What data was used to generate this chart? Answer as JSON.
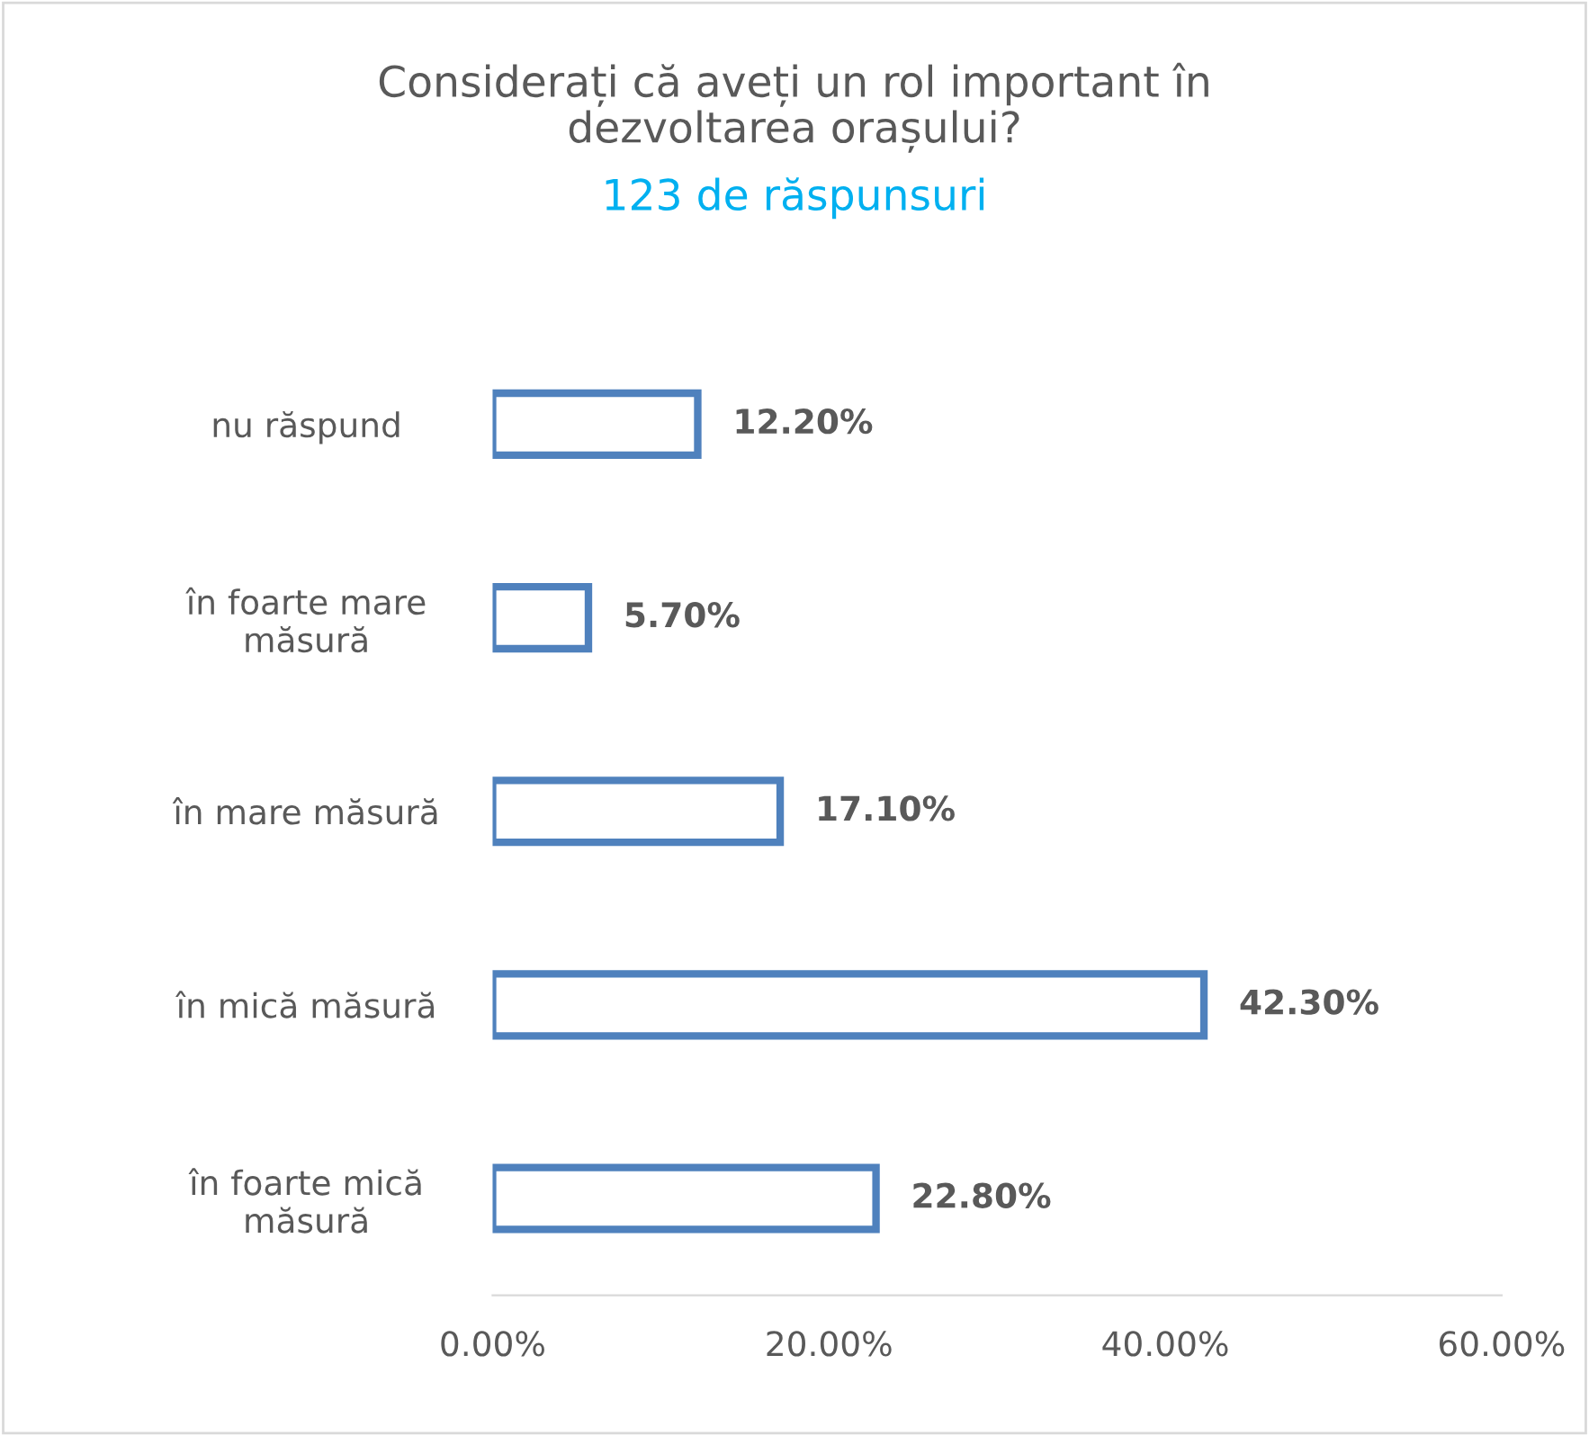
{
  "chart_data": {
    "type": "bar",
    "orientation": "horizontal",
    "title": "Considerați că aveți un rol important în dezvoltarea orașului?",
    "subtitle": "123 de răspunsuri",
    "categories": [
      "nu răspund",
      "în foarte mare măsură",
      "în mare măsură",
      "în mică măsură",
      "în foarte mică măsură"
    ],
    "values": [
      12.2,
      5.7,
      17.1,
      42.3,
      22.8
    ],
    "value_labels": [
      "12.20%",
      "5.70%",
      "17.10%",
      "42.30%",
      "22.80%"
    ],
    "color": "#4f81bd",
    "xlim": [
      0,
      60
    ],
    "xticks": [
      {
        "value": 0,
        "label": "0.00%"
      },
      {
        "value": 20,
        "label": "20.00%"
      },
      {
        "value": 40,
        "label": "40.00%"
      },
      {
        "value": 60,
        "label": "60.00%"
      }
    ],
    "grid": false,
    "legend": false
  }
}
